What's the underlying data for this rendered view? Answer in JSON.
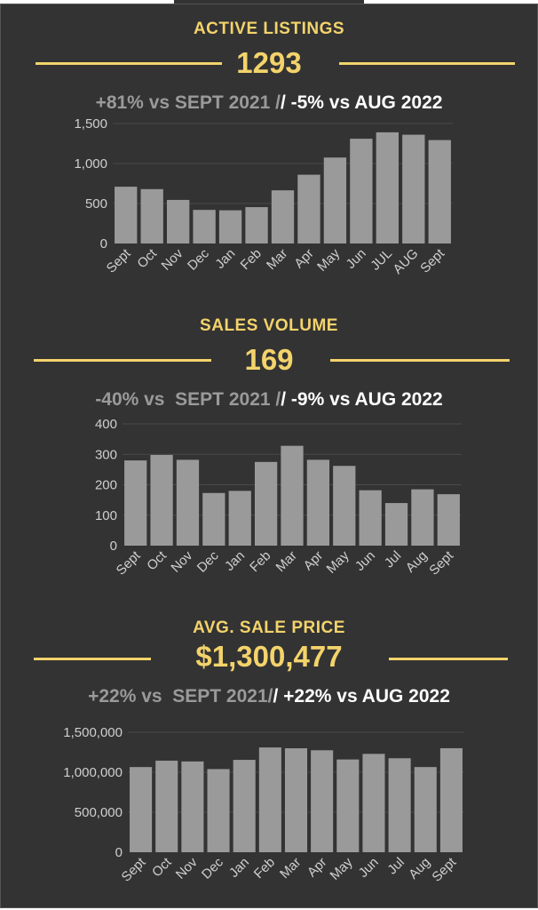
{
  "colors": {
    "background": "#333333",
    "accent": "#f3d36b",
    "bar": "#9a9a9a",
    "muted": "#9a9a9a",
    "text": "#ffffff"
  },
  "sections": [
    {
      "title": "ACTIVE LISTINGS",
      "value": "1293",
      "compare_muted": "+81% vs SEPT 2021 /",
      "compare_bright": "/ -5% vs AUG 2022"
    },
    {
      "title": "SALES VOLUME",
      "value": "169",
      "compare_muted": "-40% vs  SEPT 2021 /",
      "compare_bright": "/ -9% vs AUG 2022"
    },
    {
      "title": "AVG. SALE PRICE",
      "value": "$1,300,477",
      "compare_muted": "+22% vs  SEPT 2021/",
      "compare_bright": "/ +22% vs AUG 2022"
    }
  ],
  "chart_data": [
    {
      "type": "bar",
      "categories": [
        "Sept",
        "Oct",
        "Nov",
        "Dec",
        "Jan",
        "Feb",
        "Mar",
        "Apr",
        "May",
        "Jun",
        "JUL",
        "AUG",
        "Sept"
      ],
      "values": [
        710,
        680,
        545,
        420,
        415,
        455,
        665,
        860,
        1075,
        1310,
        1390,
        1360,
        1293
      ],
      "ylim": [
        0,
        1500
      ],
      "yticks": [
        0,
        500,
        1000,
        1500
      ],
      "ytick_labels": [
        "0",
        "500",
        "1,000",
        "1,500"
      ],
      "grid": true
    },
    {
      "type": "bar",
      "categories": [
        "Sept",
        "Oct",
        "Nov",
        "Dec",
        "Jan",
        "Feb",
        "Mar",
        "Apr",
        "May",
        "Jun",
        "Jul",
        "Aug",
        "Sept"
      ],
      "values": [
        280,
        298,
        282,
        173,
        180,
        275,
        328,
        282,
        262,
        182,
        140,
        185,
        169
      ],
      "ylim": [
        0,
        400
      ],
      "yticks": [
        0,
        100,
        200,
        300,
        400
      ],
      "ytick_labels": [
        "0",
        "100",
        "200",
        "300",
        "400"
      ],
      "grid": true
    },
    {
      "type": "bar",
      "categories": [
        "Sept",
        "Oct",
        "Nov",
        "Dec",
        "Jan",
        "Feb",
        "Mar",
        "Apr",
        "May",
        "Jun",
        "Jul",
        "Aug",
        "Sept"
      ],
      "values": [
        1065000,
        1145000,
        1135000,
        1040000,
        1155000,
        1310000,
        1300000,
        1275000,
        1160000,
        1230000,
        1175000,
        1065000,
        1300477
      ],
      "ylim": [
        0,
        1500000
      ],
      "yticks": [
        0,
        500000,
        1000000,
        1500000
      ],
      "ytick_labels": [
        "0",
        "500,000",
        "1,000,000",
        "1,500,000"
      ],
      "grid": true
    }
  ]
}
